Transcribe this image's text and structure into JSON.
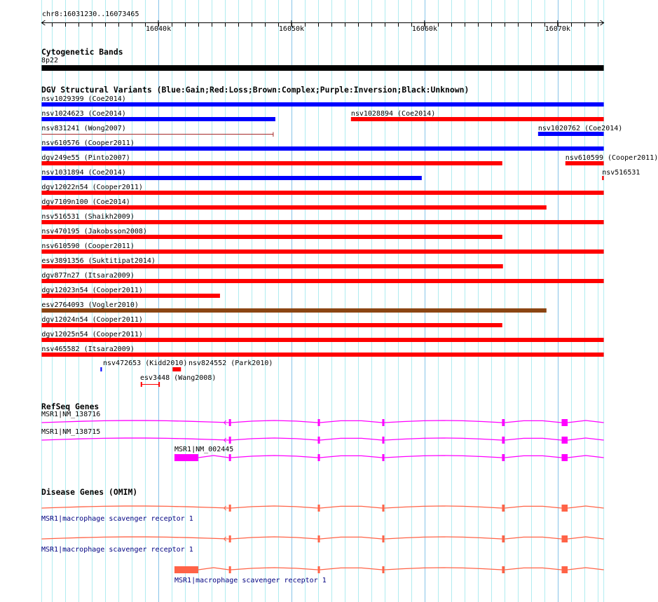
{
  "ruler": {
    "region": "chr8:16031230..16073465",
    "start": 16031230,
    "end": 16073465,
    "ticks": [
      {
        "pos": 16040000,
        "label": "16040k"
      },
      {
        "pos": 16050000,
        "label": "16050k"
      },
      {
        "pos": 16060000,
        "label": "16060k"
      },
      {
        "pos": 16070000,
        "label": "16070k"
      }
    ]
  },
  "cytoband": {
    "title": "Cytogenetic Bands",
    "band": "8p22",
    "color": "#000000"
  },
  "dgv": {
    "title": "DGV Structural Variants (Blue:Gain;Red:Loss;Brown:Complex;Purple:Inversion;Black:Unknown)",
    "colors": {
      "gain": "#0000ff",
      "loss": "#ff0000",
      "complex": "#8b4513",
      "thin": "#a52a2a"
    },
    "features": [
      {
        "row": 0,
        "label": "nsv1029399 (Coe2014)",
        "start": 16031230,
        "end": 16073465,
        "type": "gain"
      },
      {
        "row": 1,
        "label": "nsv1024623 (Coe2014)",
        "start": 16031230,
        "end": 16048790,
        "type": "gain"
      },
      {
        "row": 1,
        "label": "nsv1028894 (Coe2014)",
        "start": 16054470,
        "end": 16073465,
        "type": "loss"
      },
      {
        "row": 2,
        "label": "nsv831241 (Wong2007)",
        "start": 16031230,
        "end": 16048630,
        "type": "thin"
      },
      {
        "row": 2,
        "label": "nsv1020762 (Coe2014)",
        "start": 16068530,
        "end": 16073465,
        "type": "gain"
      },
      {
        "row": 3,
        "label": "nsv610576 (Cooper2011)",
        "start": 16031230,
        "end": 16073465,
        "type": "gain"
      },
      {
        "row": 4,
        "label": "dgv249e55 (Pinto2007)",
        "start": 16031230,
        "end": 16065840,
        "type": "loss"
      },
      {
        "row": 4,
        "label": "nsv610599 (Cooper2011)",
        "start": 16070580,
        "end": 16073465,
        "type": "loss"
      },
      {
        "row": 5,
        "label": "nsv1031894 (Coe2014)",
        "start": 16031230,
        "end": 16059790,
        "type": "gain"
      },
      {
        "row": 5,
        "label": "nsv516531",
        "start": 16073340,
        "end": 16073465,
        "type": "loss"
      },
      {
        "row": 6,
        "label": "dgv12022n54 (Cooper2011)",
        "start": 16031230,
        "end": 16073465,
        "type": "loss"
      },
      {
        "row": 7,
        "label": "dgv7109n100 (Coe2014)",
        "start": 16031230,
        "end": 16069160,
        "type": "loss"
      },
      {
        "row": 8,
        "label": "nsv516531 (Shaikh2009)",
        "start": 16031230,
        "end": 16073465,
        "type": "loss"
      },
      {
        "row": 9,
        "label": "nsv470195 (Jakobsson2008)",
        "start": 16031230,
        "end": 16065840,
        "type": "loss"
      },
      {
        "row": 10,
        "label": "nsv610590 (Cooper2011)",
        "start": 16031230,
        "end": 16073465,
        "type": "loss"
      },
      {
        "row": 11,
        "label": "esv3891356 (Suktitipat2014)",
        "start": 16031230,
        "end": 16065890,
        "type": "loss"
      },
      {
        "row": 12,
        "label": "dgv877n27 (Itsara2009)",
        "start": 16031230,
        "end": 16073465,
        "type": "loss"
      },
      {
        "row": 13,
        "label": "dgv12023n54 (Cooper2011)",
        "start": 16031230,
        "end": 16044630,
        "type": "loss"
      },
      {
        "row": 14,
        "label": "esv2764093 (Vogler2010)",
        "start": 16031230,
        "end": 16069160,
        "type": "complex"
      },
      {
        "row": 15,
        "label": "dgv12024n54 (Cooper2011)",
        "start": 16031230,
        "end": 16065840,
        "type": "loss"
      },
      {
        "row": 16,
        "label": "dgv12025n54 (Cooper2011)",
        "start": 16031230,
        "end": 16073465,
        "type": "loss"
      },
      {
        "row": 17,
        "label": "nsv465582 (Itsara2009)",
        "start": 16031230,
        "end": 16073465,
        "type": "loss"
      },
      {
        "row": 18,
        "label": "nsv472653 (Kidd2010)",
        "start": 16035650,
        "end": 16035760,
        "type": "gain"
      },
      {
        "row": 18,
        "label": "nsv824552 (Park2010)",
        "start": 16041070,
        "end": 16041700,
        "type": "loss"
      },
      {
        "row": 19,
        "label": "esv3448 (Wang2008)",
        "start": 16038700,
        "end": 16040060,
        "type": "lossline"
      }
    ]
  },
  "refseq": {
    "title": "RefSeq Genes",
    "color": "#ff00ff",
    "genes": [
      {
        "label": "MSR1|NM_138716",
        "start": 16031230,
        "end": 16073465,
        "exons": [
          [
            16045300,
            16045450
          ],
          [
            16051980,
            16052140
          ],
          [
            16056820,
            16056980
          ],
          [
            16065820,
            16066020
          ],
          [
            16070300,
            16070750
          ]
        ]
      },
      {
        "label": "MSR1|NM_138715",
        "start": 16031230,
        "end": 16073465,
        "exons": [
          [
            16045300,
            16045450
          ],
          [
            16051980,
            16052140
          ],
          [
            16056820,
            16056980
          ],
          [
            16065820,
            16066020
          ],
          [
            16070300,
            16070750
          ]
        ]
      },
      {
        "label": "MSR1|NM_002445",
        "start": 16041210,
        "end": 16073465,
        "exons": [
          [
            16041210,
            16043000
          ],
          [
            16045300,
            16045450
          ],
          [
            16051980,
            16052140
          ],
          [
            16056820,
            16056980
          ],
          [
            16065820,
            16066020
          ],
          [
            16070300,
            16070750
          ]
        ]
      }
    ]
  },
  "omim": {
    "title": "Disease Genes (OMIM)",
    "color": "#ff6347",
    "genes": [
      {
        "label": "MSR1|macrophage scavenger receptor 1",
        "start": 16031230,
        "end": 16073465,
        "exons": [
          [
            16045300,
            16045450
          ],
          [
            16051980,
            16052140
          ],
          [
            16056820,
            16056980
          ],
          [
            16065820,
            16066020
          ],
          [
            16070300,
            16070750
          ]
        ]
      },
      {
        "label": "MSR1|macrophage scavenger receptor 1",
        "start": 16031230,
        "end": 16073465,
        "exons": [
          [
            16045300,
            16045450
          ],
          [
            16051980,
            16052140
          ],
          [
            16056820,
            16056980
          ],
          [
            16065820,
            16066020
          ],
          [
            16070300,
            16070750
          ]
        ]
      },
      {
        "label": "MSR1|macrophage scavenger receptor 1",
        "start": 16041210,
        "end": 16073465,
        "exons": [
          [
            16041210,
            16043000
          ],
          [
            16045300,
            16045450
          ],
          [
            16051980,
            16052140
          ],
          [
            16056820,
            16056980
          ],
          [
            16065820,
            16066020
          ],
          [
            16070300,
            16070750
          ]
        ]
      }
    ]
  }
}
